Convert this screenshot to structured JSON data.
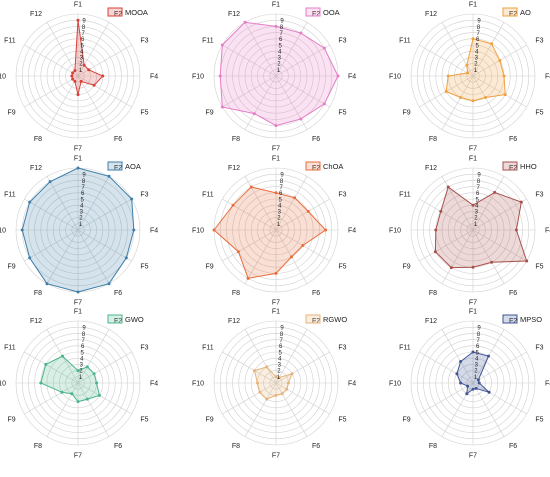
{
  "colors": {
    "MOOA": "#d9413a",
    "OOA": "#e67cc8",
    "AO": "#f2a03d",
    "AOA": "#3e7ea8",
    "ChOA": "#ea6d3d",
    "HHO": "#a7504c",
    "GWO": "#4bb58a",
    "RGWO": "#e8b378",
    "MPSO": "#3f5596"
  },
  "chart_data": [
    {
      "type": "radar",
      "name": "MOOA",
      "axes": [
        "F1",
        "F2",
        "F3",
        "F4",
        "F5",
        "F6",
        "F7",
        "F8",
        "F9",
        "F10",
        "F11",
        "F12"
      ],
      "ticks": [
        1,
        2,
        3,
        4,
        5,
        6,
        7,
        8,
        9
      ],
      "rmax": 10,
      "values": [
        9,
        2,
        2,
        4,
        3,
        1,
        3,
        1,
        1,
        1,
        1,
        1
      ]
    },
    {
      "type": "radar",
      "name": "OOA",
      "axes": [
        "F1",
        "F2",
        "F3",
        "F4",
        "F5",
        "F6",
        "F7",
        "F8",
        "F9",
        "F10",
        "F11",
        "F12"
      ],
      "ticks": [
        1,
        2,
        3,
        4,
        5,
        6,
        7,
        8,
        9
      ],
      "rmax": 10,
      "values": [
        8,
        8,
        9,
        10,
        9,
        8,
        8,
        7,
        10,
        9,
        10,
        10
      ]
    },
    {
      "type": "radar",
      "name": "AO",
      "axes": [
        "F1",
        "F2",
        "F3",
        "F4",
        "F5",
        "F6",
        "F7",
        "F8",
        "F9",
        "F10",
        "F11",
        "F12"
      ],
      "ticks": [
        1,
        2,
        3,
        4,
        5,
        6,
        7,
        8,
        9
      ],
      "rmax": 10,
      "values": [
        6,
        6,
        5,
        5,
        6,
        4,
        4,
        4,
        5,
        4,
        1,
        2
      ]
    },
    {
      "type": "radar",
      "name": "AOA",
      "axes": [
        "F1",
        "F2",
        "F3",
        "F4",
        "F5",
        "F6",
        "F7",
        "F8",
        "F9",
        "F10",
        "F11",
        "F12"
      ],
      "ticks": [
        1,
        2,
        3,
        4,
        5,
        6,
        7,
        8,
        9
      ],
      "rmax": 10,
      "values": [
        10,
        10,
        10,
        9,
        9,
        10,
        10,
        10,
        9,
        9,
        9,
        9
      ]
    },
    {
      "type": "radar",
      "name": "ChOA",
      "axes": [
        "F1",
        "F2",
        "F3",
        "F4",
        "F5",
        "F6",
        "F7",
        "F8",
        "F9",
        "F10",
        "F11",
        "F12"
      ],
      "ticks": [
        1,
        2,
        3,
        4,
        5,
        6,
        7,
        8,
        9
      ],
      "rmax": 10,
      "values": [
        6,
        6,
        6,
        8,
        5,
        5,
        7,
        9,
        7,
        10,
        8,
        8
      ]
    },
    {
      "type": "radar",
      "name": "HHO",
      "axes": [
        "F1",
        "F2",
        "F3",
        "F4",
        "F5",
        "F6",
        "F7",
        "F8",
        "F9",
        "F10",
        "F11",
        "F12"
      ],
      "ticks": [
        1,
        2,
        3,
        4,
        5,
        6,
        7,
        8,
        9
      ],
      "rmax": 10,
      "values": [
        4,
        7,
        9,
        7,
        10,
        6,
        6,
        7,
        7,
        6,
        6,
        8
      ]
    },
    {
      "type": "radar",
      "name": "GWO",
      "axes": [
        "F1",
        "F2",
        "F3",
        "F4",
        "F5",
        "F6",
        "F7",
        "F8",
        "F9",
        "F10",
        "F11",
        "F12"
      ],
      "ticks": [
        1,
        2,
        3,
        4,
        5,
        6,
        7,
        8,
        9
      ],
      "rmax": 10,
      "values": [
        2,
        3,
        3,
        3,
        4,
        3,
        3,
        2,
        3,
        6,
        6,
        5
      ]
    },
    {
      "type": "radar",
      "name": "RGWO",
      "axes": [
        "F1",
        "F2",
        "F3",
        "F4",
        "F5",
        "F6",
        "F7",
        "F8",
        "F9",
        "F10",
        "F11",
        "F12"
      ],
      "ticks": [
        1,
        2,
        3,
        4,
        5,
        6,
        7,
        8,
        9
      ],
      "rmax": 10,
      "values": [
        1,
        1,
        3,
        2,
        2,
        2,
        2,
        3,
        3,
        3,
        4,
        3
      ]
    },
    {
      "type": "radar",
      "name": "MPSO",
      "axes": [
        "F1",
        "F2",
        "F3",
        "F4",
        "F5",
        "F6",
        "F7",
        "F8",
        "F9",
        "F10",
        "F11",
        "F12"
      ],
      "ticks": [
        1,
        2,
        3,
        4,
        5,
        6,
        7,
        8,
        9
      ],
      "rmax": 10,
      "values": [
        5,
        5,
        1,
        1,
        3,
        1,
        1,
        2,
        1,
        2,
        3,
        4
      ]
    }
  ]
}
